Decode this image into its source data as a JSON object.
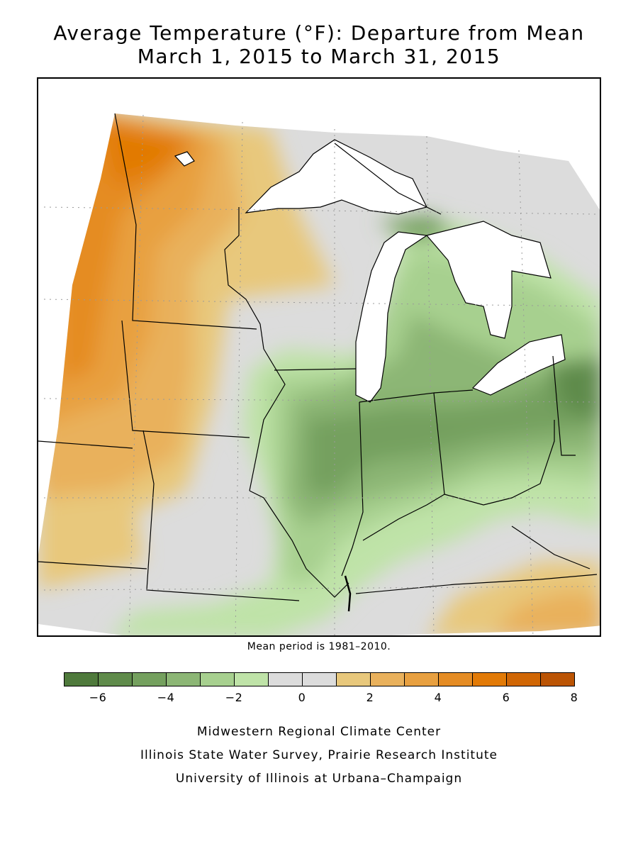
{
  "title": {
    "line1": "Average Temperature (°F): Departure from Mean",
    "line2": "March 1, 2015 to March 31, 2015"
  },
  "mean_period_note": "Mean period is 1981–2010.",
  "legend": {
    "unit": "°F",
    "bins": [
      {
        "from": -7,
        "to": -6,
        "color": "#4f7a3c"
      },
      {
        "from": -6,
        "to": -5,
        "color": "#5f8b4b"
      },
      {
        "from": -5,
        "to": -4,
        "color": "#74a05e"
      },
      {
        "from": -4,
        "to": -3,
        "color": "#8cb675"
      },
      {
        "from": -3,
        "to": -2,
        "color": "#a7d08f"
      },
      {
        "from": -2,
        "to": -1,
        "color": "#bfe3a8"
      },
      {
        "from": -1,
        "to": 0,
        "color": "#dcdcdc"
      },
      {
        "from": 0,
        "to": 1,
        "color": "#dcdcdc"
      },
      {
        "from": 1,
        "to": 2,
        "color": "#e8c87c"
      },
      {
        "from": 2,
        "to": 3,
        "color": "#e9b15c"
      },
      {
        "from": 3,
        "to": 4,
        "color": "#e8a040"
      },
      {
        "from": 4,
        "to": 5,
        "color": "#e58c24"
      },
      {
        "from": 5,
        "to": 6,
        "color": "#e27a06"
      },
      {
        "from": 6,
        "to": 7,
        "color": "#d06604"
      },
      {
        "from": 7,
        "to": 8,
        "color": "#bb5404"
      }
    ],
    "tick_labels": [
      "−6",
      "−4",
      "−2",
      "0",
      "2",
      "4",
      "6",
      "8"
    ],
    "tick_values": [
      -6,
      -4,
      -2,
      0,
      2,
      4,
      6,
      8
    ],
    "range": [
      -7,
      8
    ]
  },
  "credits": {
    "line1": "Midwestern Regional Climate Center",
    "line2": "Illinois State Water Survey, Prairie Research Institute",
    "line3": "University of Illinois at Urbana–Champaign"
  },
  "map": {
    "region": "Midwest United States",
    "states": [
      "Minnesota",
      "Iowa",
      "Missouri",
      "Wisconsin",
      "Illinois",
      "Michigan",
      "Indiana",
      "Ohio",
      "Kentucky"
    ],
    "pattern": "Warm anomalies (+1 to +6°F) in the west (Minnesota, Iowa) and far southeast; cool anomalies (−1 to −6°F) over Michigan, Illinois, Indiana and Ohio.",
    "colors": {
      "lake_fill": "#ffffff",
      "border": "#000000",
      "grid": "#9a9a9a"
    }
  }
}
